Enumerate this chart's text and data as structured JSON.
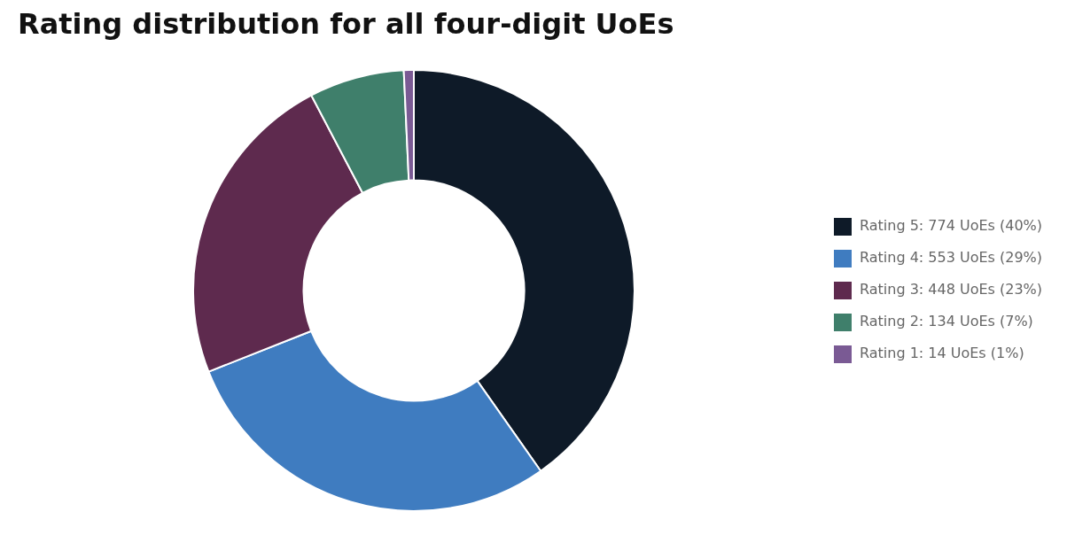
{
  "chart_data": {
    "type": "donut",
    "title": "Rating distribution for all four-digit UoEs",
    "categories": [
      "Rating 5: 774 UoEs (40%)",
      "Rating 4: 553 UoEs (29%)",
      "Rating 3: 448 UoEs (23%)",
      "Rating 2: 134 UoEs (7%)",
      "Rating 1: 14 UoEs (1%)"
    ],
    "values": [
      774,
      553,
      448,
      134,
      14
    ],
    "colors": [
      "#0e1a28",
      "#3f7cc0",
      "#5e2a4e",
      "#3f7f6b",
      "#7a5a94"
    ],
    "legend": "right"
  }
}
